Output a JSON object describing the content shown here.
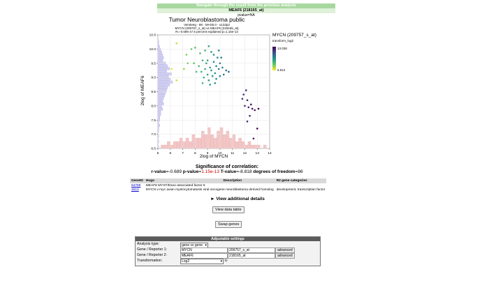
{
  "nav": {
    "title": "Navigate through the result from the previous analysis"
  },
  "result": {
    "title": "MEAF6 (218165_at)",
    "pvalue": "pvalue=NA"
  },
  "plot": {
    "title": "Tumor Neuroblastoma public",
    "subtitle1": "Versteeg - 88 - MAS5.0 - u133p2",
    "subtitle2": "MYCN (209757_s_at) vs MEAF6 (218165_at)",
    "subtitle3": "R=-0.689 47.5 percent explained p=1.15e-13",
    "legend_title": "MYCN (209757_s_at)",
    "legend_sub": "transform_log2",
    "legend_max": "13.038",
    "legend_min": "5.912"
  },
  "chart_data": {
    "type": "scatter",
    "xlabel": "2log of MYCN",
    "ylabel": "2log of MEAF6",
    "xlim": [
      5,
      14
    ],
    "ylim": [
      6.5,
      10.5
    ],
    "xticks": [
      "5",
      "6",
      "7",
      "8",
      "9",
      "10",
      "11",
      "12",
      "13",
      "14"
    ],
    "yticks": [
      "6.5",
      "7.0",
      "7.5",
      "8.0",
      "8.5",
      "9.0",
      "9.5",
      "10.0",
      "10.5"
    ],
    "points": [
      [
        6.5,
        10.2
      ],
      [
        7.3,
        9.8
      ],
      [
        7.7,
        10.0
      ],
      [
        8.0,
        10.05
      ],
      [
        8.4,
        9.85
      ],
      [
        8.8,
        9.95
      ],
      [
        9.1,
        10.1
      ],
      [
        9.3,
        9.9
      ],
      [
        8.6,
        9.6
      ],
      [
        8.9,
        9.5
      ],
      [
        9.0,
        9.6
      ],
      [
        9.2,
        9.35
      ],
      [
        9.5,
        9.55
      ],
      [
        9.7,
        9.4
      ],
      [
        9.8,
        9.7
      ],
      [
        10.0,
        9.5
      ],
      [
        8.5,
        9.2
      ],
      [
        8.8,
        9.3
      ],
      [
        9.0,
        9.1
      ],
      [
        9.3,
        9.25
      ],
      [
        9.6,
        9.15
      ],
      [
        9.9,
        9.3
      ],
      [
        10.2,
        9.35
      ],
      [
        10.5,
        9.25
      ],
      [
        8.7,
        9.0
      ],
      [
        9.1,
        8.9
      ],
      [
        9.4,
        9.05
      ],
      [
        9.7,
        8.95
      ],
      [
        10.0,
        9.05
      ],
      [
        10.3,
        9.1
      ],
      [
        9.2,
        8.75
      ],
      [
        9.6,
        8.8
      ],
      [
        8.3,
        9.4
      ],
      [
        7.9,
        9.5
      ],
      [
        8.1,
        9.2
      ],
      [
        10.7,
        9.2
      ],
      [
        9.5,
        9.8
      ],
      [
        9.9,
        9.95
      ],
      [
        10.1,
        9.7
      ],
      [
        8.6,
        8.8
      ],
      [
        7.4,
        9.5
      ],
      [
        7.1,
        9.3
      ],
      [
        6.1,
        9.3
      ],
      [
        6.5,
        8.9
      ],
      [
        11.9,
        8.4
      ],
      [
        12.1,
        8.55
      ],
      [
        12.2,
        8.2
      ],
      [
        12.5,
        8.05
      ],
      [
        12.0,
        8.0
      ],
      [
        12.3,
        7.95
      ],
      [
        11.8,
        8.25
      ],
      [
        12.6,
        7.9
      ],
      [
        12.8,
        7.85
      ],
      [
        13.1,
        7.9
      ],
      [
        12.4,
        7.65
      ],
      [
        12.2,
        7.45
      ],
      [
        12.7,
        6.85
      ],
      [
        13.0,
        7.2
      ]
    ],
    "x_hist": [
      0,
      1,
      1,
      2,
      1,
      2,
      2,
      3,
      2,
      3,
      2,
      4,
      3,
      3,
      5,
      4,
      6,
      4,
      3,
      5,
      6,
      4,
      5,
      3,
      4,
      2,
      3,
      2,
      1,
      2,
      1,
      1,
      1,
      0,
      1,
      0
    ],
    "y_hist_bins_from_top": [
      0,
      0,
      1,
      1,
      2,
      3,
      4,
      5,
      6,
      5,
      8,
      10,
      12,
      9,
      14,
      11,
      13,
      15,
      12,
      10,
      9,
      8,
      7,
      6,
      5,
      6,
      4,
      5,
      3,
      3,
      2,
      2,
      1,
      2,
      1,
      1,
      0,
      1,
      0,
      1,
      0,
      1
    ]
  },
  "significance": {
    "title": "Significance of correlation:",
    "r_label": "r-value",
    "r_value": "=-0.689",
    "p_label": "p-value",
    "p_prefix": "=",
    "p_value": "1.15e-13",
    "t_label": "T-value",
    "t_value": "=-8.818",
    "df_label": "degrees of freedom",
    "df_value": "=86"
  },
  "gene_table": {
    "headers": [
      "GeneID",
      "Hugo",
      "Description",
      "R2 gene categories"
    ],
    "rows": [
      {
        "id": "64769",
        "hugo": "MEAF6",
        "desc": "MYST/Esa1-associated factor 6",
        "cat": ""
      },
      {
        "id": "4613",
        "hugo": "MYCN",
        "desc": "v-myc avian myelocytomatosis viral oncogene neuroblastoma derived homolog",
        "cat": "development, transcription factor"
      }
    ]
  },
  "details": {
    "label": "► View additional details"
  },
  "buttons": {
    "view_data": "View data table",
    "swap": "Swap genes"
  },
  "settings": {
    "title": "Adjustable settings",
    "analysis_label": "Analysis type:",
    "analysis_value": "gene vs gene",
    "gene1_label": "Gene / Reporter 1:",
    "gene1_value": "MYCN",
    "reporter1_value": "209757_s_at",
    "gene2_label": "Gene / Reporter 2:",
    "gene2_value": "MEAF6",
    "reporter2_value": "218165_at",
    "advanced": "advanced",
    "transform_label": "Transformation:",
    "transform_value": "Log2",
    "info_icon": "①"
  }
}
